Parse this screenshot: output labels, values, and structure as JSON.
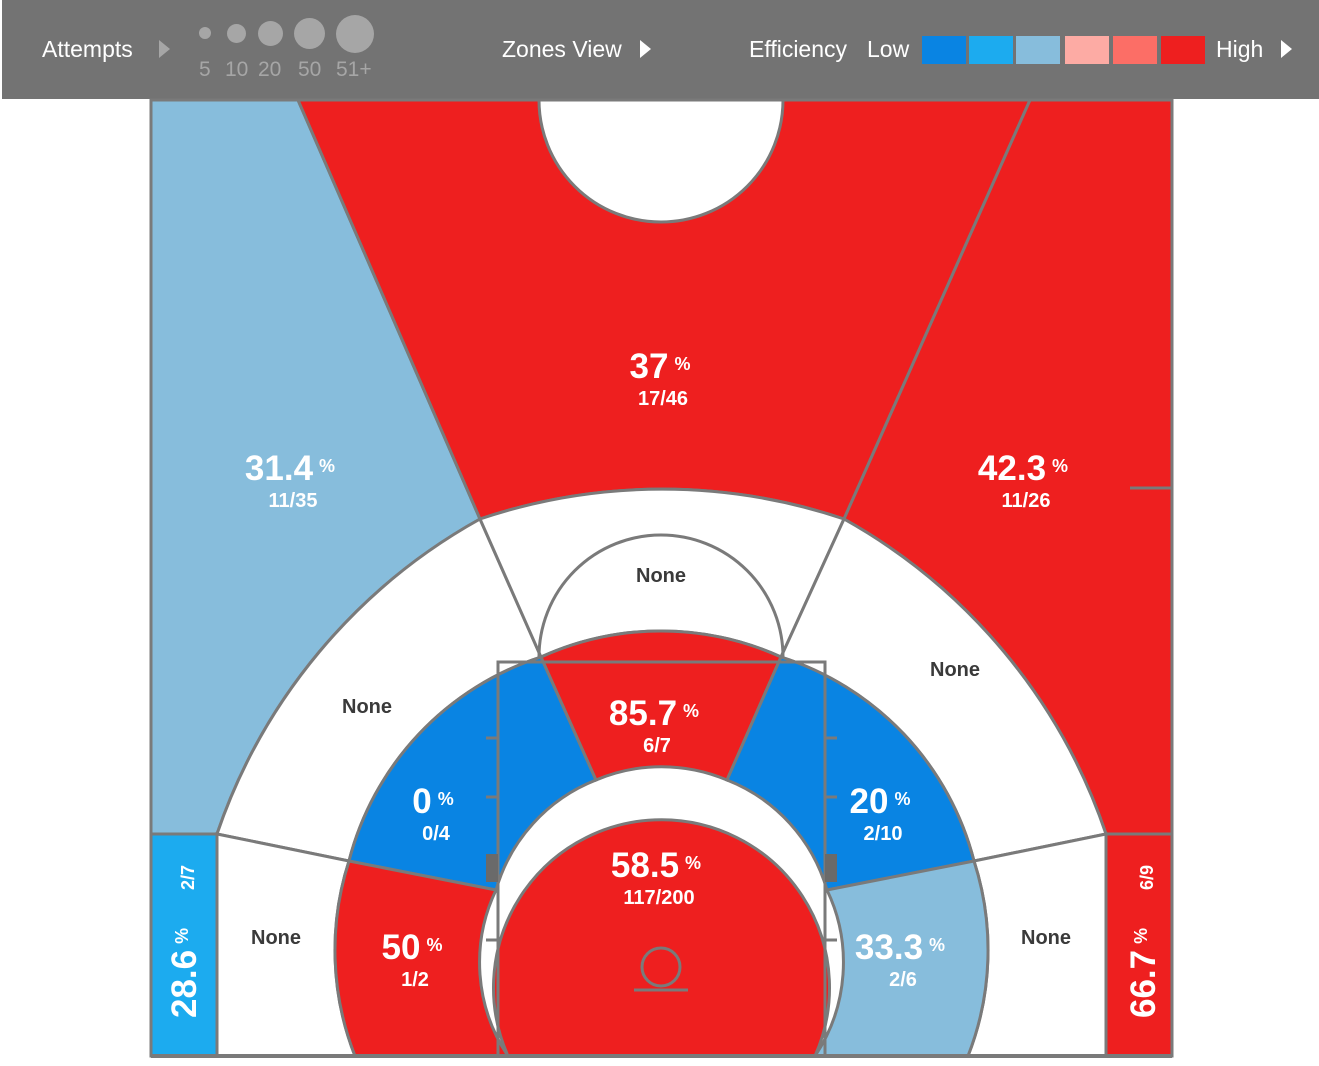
{
  "toolbar": {
    "attempts_label": "Attempts",
    "size_legend": [
      "5",
      "10",
      "20",
      "50",
      "51+"
    ],
    "view_label": "Zones View",
    "efficiency_label": "Efficiency",
    "low_label": "Low",
    "high_label": "High",
    "scale_colors": [
      "#0984e3",
      "#1cabef",
      "#87bddc",
      "#fdaba4",
      "#fc6e66",
      "#ee1f1f"
    ]
  },
  "chart_data": {
    "type": "heatmap",
    "title": "",
    "zones": [
      {
        "id": "top-of-key-three",
        "pct": "37",
        "made": 17,
        "attempts": 46,
        "fraction": "17/46",
        "color": "#ee1f1f"
      },
      {
        "id": "left-wing-three",
        "pct": "31.4",
        "made": 11,
        "attempts": 35,
        "fraction": "11/35",
        "color": "#87bddc"
      },
      {
        "id": "right-wing-three",
        "pct": "42.3",
        "made": 11,
        "attempts": 26,
        "fraction": "11/26",
        "color": "#ee1f1f"
      },
      {
        "id": "left-corner-three",
        "pct": "28.6",
        "made": 2,
        "attempts": 7,
        "fraction": "2/7",
        "color": "#1cabef"
      },
      {
        "id": "right-corner-three",
        "pct": "66.7",
        "made": 6,
        "attempts": 9,
        "fraction": "6/9",
        "color": "#ee1f1f"
      },
      {
        "id": "top-long-two",
        "pct": "None",
        "color": "#ffffff"
      },
      {
        "id": "left-long-two",
        "pct": "None",
        "color": "#ffffff"
      },
      {
        "id": "right-long-two",
        "pct": "None",
        "color": "#ffffff"
      },
      {
        "id": "left-baseline-long-two",
        "pct": "None",
        "color": "#ffffff"
      },
      {
        "id": "right-baseline-long-two",
        "pct": "None",
        "color": "#ffffff"
      },
      {
        "id": "free-throw-mid",
        "pct": "85.7",
        "made": 6,
        "attempts": 7,
        "fraction": "6/7",
        "color": "#ee1f1f"
      },
      {
        "id": "left-mid-elbow",
        "pct": "0",
        "made": 0,
        "attempts": 4,
        "fraction": "0/4",
        "color": "#0984e3"
      },
      {
        "id": "right-mid-elbow",
        "pct": "20",
        "made": 2,
        "attempts": 10,
        "fraction": "2/10",
        "color": "#0984e3"
      },
      {
        "id": "left-baseline-mid",
        "pct": "50",
        "made": 1,
        "attempts": 2,
        "fraction": "1/2",
        "color": "#ee1f1f"
      },
      {
        "id": "right-baseline-mid",
        "pct": "33.3",
        "made": 2,
        "attempts": 6,
        "fraction": "2/6",
        "color": "#87bddc"
      },
      {
        "id": "restricted-area",
        "pct": "58.5",
        "made": 117,
        "attempts": 200,
        "fraction": "117/200",
        "color": "#ee1f1f"
      }
    ],
    "percent_symbol": "%"
  }
}
